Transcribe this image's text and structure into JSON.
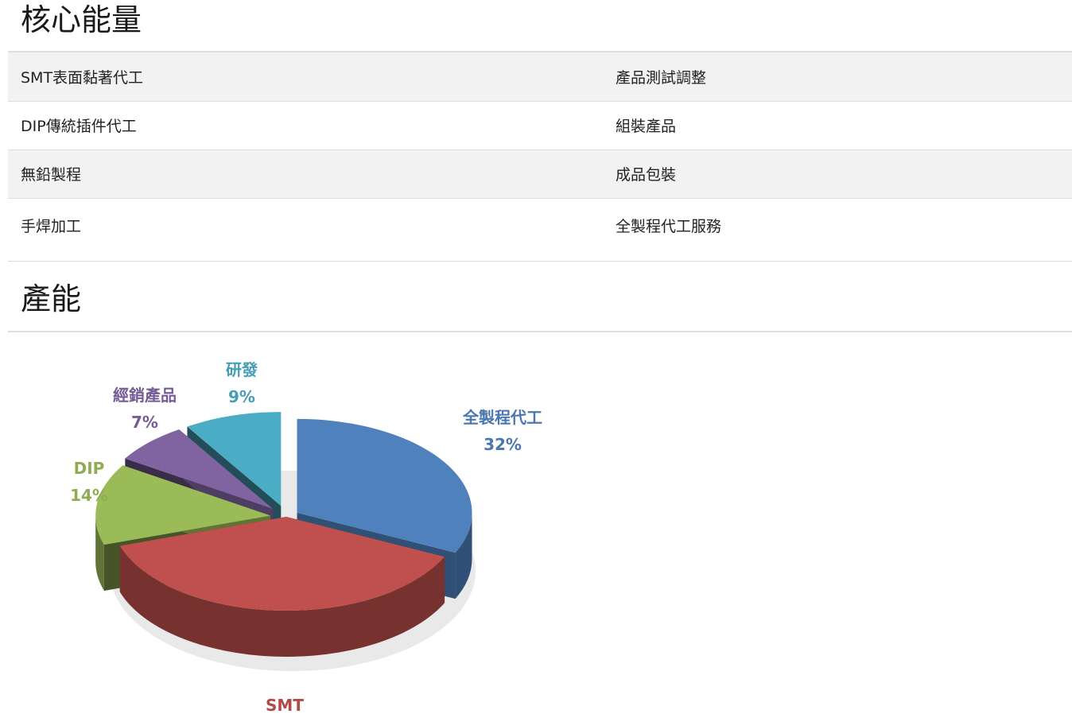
{
  "core": {
    "title": "核心能量",
    "rows": [
      {
        "left": "SMT表面黏著代工",
        "right": "產品測試調整"
      },
      {
        "left": "DIP傳統插件代工",
        "right": "組裝產品"
      },
      {
        "left": "無鉛製程",
        "right": "成品包裝"
      },
      {
        "left": "手焊加工",
        "right": "全製程代工服務"
      }
    ]
  },
  "capacity": {
    "title": "產能"
  },
  "chart_data": {
    "type": "pie",
    "title": "",
    "categories": [
      "全製程代工",
      "SMT",
      "DIP",
      "經銷產品",
      "研發"
    ],
    "values": [
      32,
      38,
      14,
      7,
      9
    ],
    "value_labels": [
      "32%",
      "",
      "14%",
      "7%",
      "9%"
    ],
    "colors": {
      "全製程代工": "#4f81bd",
      "SMT": "#c0504d",
      "DIP": "#9bbb59",
      "經銷產品": "#8064a2",
      "研發": "#4bacc6"
    },
    "style": "3d-exploded",
    "legend": "none"
  }
}
